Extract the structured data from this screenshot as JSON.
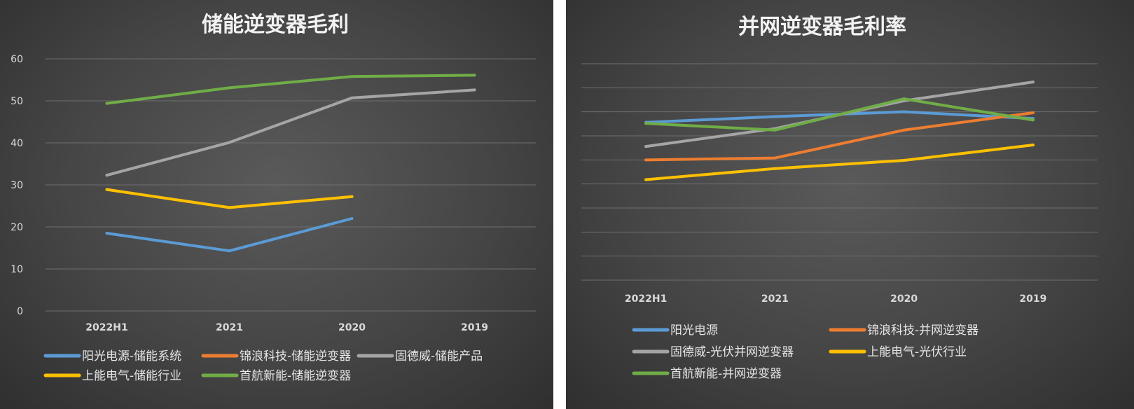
{
  "chart_data": [
    {
      "type": "line",
      "title": "储能逆变器毛利",
      "categories": [
        "2022H1",
        "2021",
        "2020",
        "2019"
      ],
      "ylim": [
        0,
        60
      ],
      "yticks": [
        0,
        10,
        20,
        30,
        40,
        50,
        60
      ],
      "grid": true,
      "legend_position": "bottom",
      "series": [
        {
          "name": "阳光电源-储能系统",
          "color": "#5b9bd5",
          "values": [
            18.5,
            14.3,
            22,
            null
          ]
        },
        {
          "name": "锦浪科技-储能逆变器",
          "color": "#ed7d31",
          "values": [
            null,
            null,
            null,
            null
          ]
        },
        {
          "name": "固德威-储能产品",
          "color": "#a5a5a5",
          "values": [
            32.3,
            40.1,
            50.7,
            52.6
          ]
        },
        {
          "name": "上能电气-储能行业",
          "color": "#ffc000",
          "values": [
            28.9,
            24.6,
            27.2,
            null
          ]
        },
        {
          "name": "首航新能-储能逆变器",
          "color": "#70ad47",
          "values": [
            49.4,
            53.1,
            55.8,
            56.1
          ]
        }
      ]
    },
    {
      "type": "line",
      "title": "并网逆变器毛利率",
      "categories": [
        "2022H1",
        "2021",
        "2020",
        "2019"
      ],
      "ylim": [
        0,
        45
      ],
      "yticks": [
        0,
        5,
        10,
        15,
        20,
        25,
        30,
        35,
        40,
        45
      ],
      "grid": true,
      "legend_position": "bottom",
      "series": [
        {
          "name": "阳光电源",
          "color": "#5b9bd5",
          "values": [
            32.8,
            34.0,
            35.0,
            33.6
          ]
        },
        {
          "name": "锦浪科技-并网逆变器",
          "color": "#ed7d31",
          "values": [
            25.0,
            25.4,
            31.2,
            34.8
          ]
        },
        {
          "name": "固德威-光伏并网逆变器",
          "color": "#a5a5a5",
          "values": [
            27.8,
            31.5,
            37.3,
            41.2
          ]
        },
        {
          "name": "上能电气-光伏行业",
          "color": "#ffc000",
          "values": [
            20.9,
            23.2,
            24.9,
            28.1
          ]
        },
        {
          "name": "首航新能-并网逆变器",
          "color": "#70ad47",
          "values": [
            32.6,
            31.2,
            37.7,
            33.3
          ]
        }
      ]
    }
  ]
}
